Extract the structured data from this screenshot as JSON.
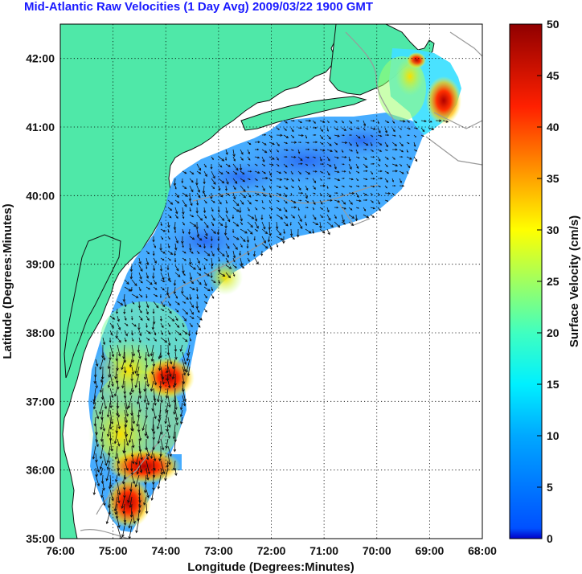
{
  "title": "Mid-Atlantic Raw Velocities (1 Day Avg) 2009/03/22 1900 GMT",
  "map": {
    "xlabel": "Longitude (Degrees:Minutes)",
    "ylabel": "Latitude (Degrees:Minutes)",
    "x_ticks": [
      "76:00",
      "75:00",
      "74:00",
      "73:00",
      "72:00",
      "71:00",
      "70:00",
      "69:00",
      "68:00"
    ],
    "y_ticks": [
      "35:00",
      "36:00",
      "37:00",
      "38:00",
      "39:00",
      "40:00",
      "41:00",
      "42:00"
    ],
    "lon_range": [
      -76,
      -68
    ],
    "lat_range": [
      35,
      42.5
    ],
    "grid": "dotted",
    "land_color": "#4fe8a8",
    "coast_color": "#111111",
    "bathymetry_color": "#999999"
  },
  "colorbar": {
    "label": "Surface Velocity (cm/s)",
    "ticks": [
      "0",
      "5",
      "10",
      "15",
      "20",
      "25",
      "30",
      "35",
      "40",
      "45",
      "50"
    ],
    "range": [
      0,
      50
    ],
    "colormap": "jet"
  }
}
